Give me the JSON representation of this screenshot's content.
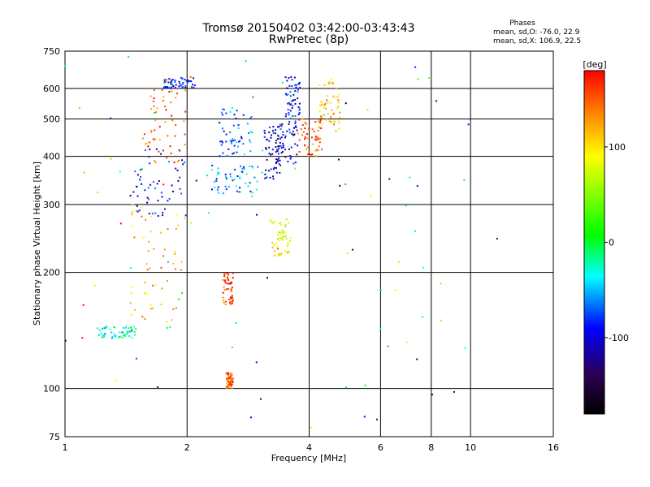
{
  "chart_data": {
    "type": "scatter",
    "title": "Tromsø 20150402 03:42:00-03:43:43",
    "subtitle": "RwPretec (8p)",
    "xlabel": "Frequency [MHz]",
    "ylabel": "Stationary phase Virtual Height [km]",
    "x_scale": "log",
    "y_scale": "log",
    "xlim": [
      1,
      16
    ],
    "ylim": [
      75,
      750
    ],
    "x_ticks": [
      1,
      2,
      4,
      6,
      8,
      10,
      16
    ],
    "y_ticks": [
      75,
      100,
      200,
      300,
      400,
      500,
      600,
      750
    ],
    "grid": true,
    "legend": {
      "title": "Phases",
      "lines": [
        "mean, sd,O: -76.0, 22.9",
        "mean, sd,X: 106.9, 22.5"
      ],
      "placement": "top-right"
    },
    "colorbar": {
      "label": "[deg]",
      "range": [
        -180,
        180
      ],
      "ticks": [
        100,
        0,
        -100
      ]
    },
    "clusters": [
      {
        "x": [
          1.45,
          1.95
        ],
        "y": [
          140,
          300
        ],
        "phase": 120
      },
      {
        "x": [
          1.45,
          2.0
        ],
        "y": [
          280,
          420
        ],
        "phase": -95
      },
      {
        "x": [
          1.55,
          2.0
        ],
        "y": [
          380,
          600
        ],
        "phase": 150
      },
      {
        "x": [
          1.75,
          2.1
        ],
        "y": [
          600,
          640
        ],
        "phase": -90
      },
      {
        "x": [
          1.2,
          1.5
        ],
        "y": [
          135,
          145
        ],
        "phase": -30
      },
      {
        "x": [
          2.45,
          2.6
        ],
        "y": [
          165,
          200
        ],
        "phase": 160
      },
      {
        "x": [
          2.3,
          3.0
        ],
        "y": [
          320,
          380
        ],
        "phase": -60
      },
      {
        "x": [
          2.4,
          2.9
        ],
        "y": [
          400,
          540
        ],
        "phase": -70
      },
      {
        "x": [
          3.1,
          3.4
        ],
        "y": [
          350,
          480
        ],
        "phase": -110
      },
      {
        "x": [
          3.35,
          3.75
        ],
        "y": [
          380,
          500
        ],
        "phase": -100
      },
      {
        "x": [
          3.5,
          3.8
        ],
        "y": [
          500,
          650
        ],
        "phase": -90
      },
      {
        "x": [
          3.75,
          4.3
        ],
        "y": [
          400,
          500
        ],
        "phase": 150
      },
      {
        "x": [
          4.2,
          4.8
        ],
        "y": [
          460,
          640
        ],
        "phase": 110
      },
      {
        "x": [
          3.2,
          3.6
        ],
        "y": [
          220,
          280
        ],
        "phase": 90
      },
      {
        "x": [
          2.5,
          2.6
        ],
        "y": [
          100,
          110
        ],
        "phase": 150
      }
    ]
  }
}
